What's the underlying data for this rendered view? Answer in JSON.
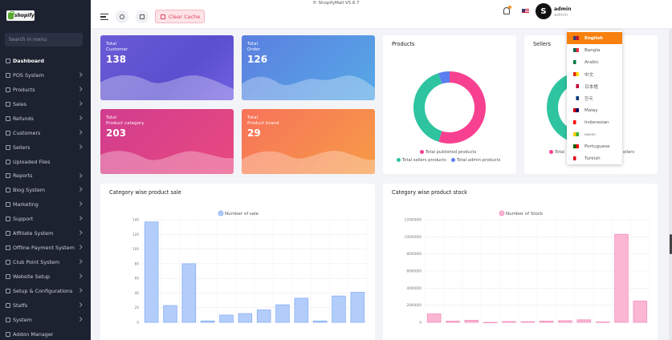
{
  "app": {
    "version": "© ShopifyMall V5.6.7"
  },
  "sidebar": {
    "logo_text": "shopify",
    "search_placeholder": "Search in menu",
    "items": [
      {
        "label": "Dashboard",
        "active": true,
        "chevron": false
      },
      {
        "label": "POS System",
        "chevron": true
      },
      {
        "label": "Products",
        "chevron": true
      },
      {
        "label": "Sales",
        "chevron": true
      },
      {
        "label": "Refunds",
        "chevron": true
      },
      {
        "label": "Customers",
        "chevron": true
      },
      {
        "label": "Sellers",
        "chevron": true
      },
      {
        "label": "Uploaded Files",
        "chevron": false
      },
      {
        "label": "Reports",
        "chevron": true
      },
      {
        "label": "Blog System",
        "chevron": true
      },
      {
        "label": "Marketing",
        "chevron": true
      },
      {
        "label": "Support",
        "chevron": true
      },
      {
        "label": "Affiliate System",
        "chevron": true
      },
      {
        "label": "Offline Payment System",
        "chevron": true
      },
      {
        "label": "Club Point System",
        "chevron": true
      },
      {
        "label": "Website Setup",
        "chevron": true
      },
      {
        "label": "Setup & Configurations",
        "chevron": true
      },
      {
        "label": "Staffs",
        "chevron": true
      },
      {
        "label": "System",
        "chevron": true
      },
      {
        "label": "Addon Manager",
        "chevron": false
      }
    ]
  },
  "header": {
    "clear_cache": "Clear Cache",
    "user_name": "admin",
    "user_role": "admin",
    "avatar_text": "S"
  },
  "stats": [
    {
      "label1": "Total",
      "label2": "Customer",
      "value": "138"
    },
    {
      "label1": "Total",
      "label2": "Order",
      "value": "126"
    },
    {
      "label1": "Total",
      "label2": "Product category",
      "value": "203"
    },
    {
      "label1": "Total",
      "label2": "Product brand",
      "value": "29"
    }
  ],
  "products_panel": {
    "title": "Products",
    "legend": [
      "Total published products",
      "Total sellers products",
      "Total admin products"
    ],
    "colors": [
      "#f74190",
      "#2ec4a0",
      "#5b7ff0"
    ]
  },
  "sellers_panel": {
    "title": "Sellers",
    "legend_partial": [
      "Total",
      "ellers"
    ]
  },
  "language_menu": {
    "items": [
      {
        "label": "English",
        "selected": true
      },
      {
        "label": "Bangla"
      },
      {
        "label": "Arabic"
      },
      {
        "label": "中文"
      },
      {
        "label": "日本語"
      },
      {
        "label": "한국"
      },
      {
        "label": "Malay"
      },
      {
        "label": "Indonesian"
      },
      {
        "label": "ဗမာစာ"
      },
      {
        "label": "Portuguese"
      },
      {
        "label": "Turkish"
      }
    ]
  },
  "chart_data": [
    {
      "type": "pie",
      "title": "Products",
      "labels": [
        "Total published products",
        "Total sellers products",
        "Total admin products"
      ],
      "values": [
        55,
        40,
        5
      ]
    },
    {
      "type": "bar",
      "title": "Category wise product sale",
      "series": [
        {
          "name": "Number of sale",
          "values": [
            137,
            23,
            80,
            2,
            10,
            12,
            17,
            24,
            33,
            2,
            36,
            41
          ]
        }
      ],
      "ylim": [
        0,
        140
      ],
      "yticks": [
        "0",
        "20",
        "40",
        "60",
        "80",
        "100",
        "120",
        "140"
      ]
    },
    {
      "type": "bar",
      "title": "Category wise product stock",
      "series": [
        {
          "name": "Number of Stock",
          "values": [
            1000000,
            150000,
            250000,
            0,
            100000,
            80000,
            150000,
            200000,
            300000,
            50000,
            10300000,
            2500000
          ]
        }
      ],
      "ylim": [
        0,
        12000000
      ],
      "yticks": [
        "0",
        "2000000",
        "4000000",
        "6000000",
        "8000000",
        "10000000",
        "12000000"
      ]
    }
  ]
}
